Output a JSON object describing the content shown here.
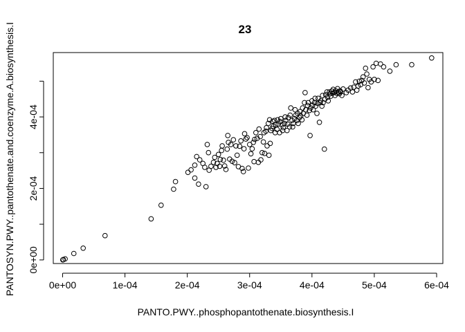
{
  "chart_data": {
    "type": "scatter",
    "title": "23",
    "xlabel": "PANTO.PWY..phosphopantothenate.biosynthesis.I",
    "ylabel": "PANTOSYN.PWY..pantothenate.and.coenzyme.A.biosynthesis.I",
    "xlim": [
      -1.5e-05,
      0.00061
    ],
    "ylim": [
      -1e-05,
      0.00058
    ],
    "x_ticks": [
      0,
      0.0001,
      0.0002,
      0.0003,
      0.0004,
      0.0005,
      0.0006
    ],
    "x_tick_labels": [
      "0e+00",
      "1e-04",
      "2e-04",
      "3e-04",
      "4e-04",
      "5e-04",
      "6e-04"
    ],
    "y_ticks": [
      0,
      0.0001,
      0.0002,
      0.0003,
      0.0004,
      0.0005
    ],
    "y_tick_labels": [
      "0e+00",
      "",
      "2e-04",
      "",
      "4e-04",
      ""
    ],
    "grid": false,
    "marker": "open-circle",
    "color": "#000000",
    "points": [
      [
        3e-07,
        3e-07
      ],
      [
        1e-06,
        1e-06
      ],
      [
        4e-06,
        3e-06
      ],
      [
        1.8e-05,
        1.8e-05
      ],
      [
        3.3e-05,
        3.3e-05
      ],
      [
        6.8e-05,
        6.8e-05
      ],
      [
        0.000142,
        0.000115
      ],
      [
        0.000158,
        0.000153
      ],
      [
        0.000178,
        0.000198
      ],
      [
        0.000181,
        0.000219
      ],
      [
        0.000201,
        0.000245
      ],
      [
        0.000206,
        0.000252
      ],
      [
        0.000212,
        0.000229
      ],
      [
        0.000212,
        0.000265
      ],
      [
        0.000215,
        0.000289
      ],
      [
        0.000218,
        0.000212
      ],
      [
        0.00022,
        0.00028
      ],
      [
        0.000225,
        0.00027
      ],
      [
        0.000228,
        0.000259
      ],
      [
        0.00023,
        0.000205
      ],
      [
        0.000232,
        0.000323
      ],
      [
        0.000234,
        0.0003
      ],
      [
        0.000235,
        0.000251
      ],
      [
        0.000238,
        0.000262
      ],
      [
        0.000242,
        0.000273
      ],
      [
        0.000244,
        0.000287
      ],
      [
        0.000246,
        0.000259
      ],
      [
        0.000248,
        0.00027
      ],
      [
        0.00025,
        0.000295
      ],
      [
        0.000252,
        0.000262
      ],
      [
        0.000253,
        0.000281
      ],
      [
        0.000255,
        0.000306
      ],
      [
        0.000256,
        0.000319
      ],
      [
        0.000258,
        0.000279
      ],
      [
        0.00026,
        0.000263
      ],
      [
        0.000262,
        0.000253
      ],
      [
        0.000264,
        0.00031
      ],
      [
        0.000265,
        0.000348
      ],
      [
        0.000266,
        0.000329
      ],
      [
        0.000268,
        0.000282
      ],
      [
        0.00027,
        0.000323
      ],
      [
        0.000272,
        0.000276
      ],
      [
        0.000274,
        0.000336
      ],
      [
        0.000276,
        0.000272
      ],
      [
        0.000278,
        0.000319
      ],
      [
        0.00028,
        0.000293
      ],
      [
        0.000282,
        0.000261
      ],
      [
        0.000284,
        0.000318
      ],
      [
        0.000286,
        0.000333
      ],
      [
        0.000288,
        0.000256
      ],
      [
        0.00029,
        0.000247
      ],
      [
        0.000291,
        0.000311
      ],
      [
        0.000292,
        0.000353
      ],
      [
        0.000294,
        0.000338
      ],
      [
        0.000296,
        0.000342
      ],
      [
        0.000298,
        0.000257
      ],
      [
        0.0003,
        0.000323
      ],
      [
        0.000302,
        0.000297
      ],
      [
        0.000304,
        0.000311
      ],
      [
        0.000306,
        0.000329
      ],
      [
        0.000307,
        0.000275
      ],
      [
        0.000308,
        0.000337
      ],
      [
        0.00031,
        0.000356
      ],
      [
        0.000312,
        0.00034
      ],
      [
        0.000314,
        0.000273
      ],
      [
        0.000315,
        0.000366
      ],
      [
        0.000317,
        0.000345
      ],
      [
        0.000318,
        0.00028
      ],
      [
        0.00032,
        0.0003
      ],
      [
        0.000322,
        0.00033
      ],
      [
        0.000323,
        0.000356
      ],
      [
        0.000324,
        0.000298
      ],
      [
        0.000326,
        0.00036
      ],
      [
        0.000327,
        0.00037
      ],
      [
        0.000328,
        0.000319
      ],
      [
        0.00033,
        0.000382
      ],
      [
        0.000331,
        0.000293
      ],
      [
        0.000332,
        0.000392
      ],
      [
        0.000333,
        0.000326
      ],
      [
        0.000334,
        0.000362
      ],
      [
        0.000336,
        0.000368
      ],
      [
        0.000337,
        0.000388
      ],
      [
        0.000338,
        0.000374
      ],
      [
        0.00034,
        0.00039
      ],
      [
        0.000341,
        0.000356
      ],
      [
        0.000342,
        0.000378
      ],
      [
        0.000344,
        0.000365
      ],
      [
        0.000345,
        0.000392
      ],
      [
        0.000346,
        0.00038
      ],
      [
        0.000348,
        0.000356
      ],
      [
        0.000349,
        0.000387
      ],
      [
        0.00035,
        0.000395
      ],
      [
        0.000352,
        0.000378
      ],
      [
        0.000353,
        0.000362
      ],
      [
        0.000354,
        0.00037
      ],
      [
        0.000356,
        0.000382
      ],
      [
        0.000357,
        0.0004
      ],
      [
        0.000358,
        0.00039
      ],
      [
        0.00036,
        0.000362
      ],
      [
        0.000361,
        0.00038
      ],
      [
        0.000362,
        0.000398
      ],
      [
        0.000364,
        0.000372
      ],
      [
        0.000365,
        0.000405
      ],
      [
        0.000366,
        0.000425
      ],
      [
        0.000368,
        0.00039
      ],
      [
        0.000369,
        0.000372
      ],
      [
        0.00037,
        0.000382
      ],
      [
        0.000372,
        0.000395
      ],
      [
        0.000373,
        0.00042
      ],
      [
        0.000374,
        0.000405
      ],
      [
        0.000376,
        0.00039
      ],
      [
        0.000377,
        0.00041
      ],
      [
        0.000378,
        0.000382
      ],
      [
        0.00038,
        0.000398
      ],
      [
        0.000381,
        0.000415
      ],
      [
        0.000382,
        0.000403
      ],
      [
        0.000384,
        0.000392
      ],
      [
        0.000385,
        0.000425
      ],
      [
        0.000386,
        0.00041
      ],
      [
        0.000388,
        0.00044
      ],
      [
        0.000389,
        0.000468
      ],
      [
        0.00039,
        0.00042
      ],
      [
        0.000392,
        0.000405
      ],
      [
        0.000393,
        0.000432
      ],
      [
        0.000394,
        0.00044
      ],
      [
        0.000396,
        0.000418
      ],
      [
        0.000397,
        0.000348
      ],
      [
        0.000398,
        0.000425
      ],
      [
        0.0004,
        0.000445
      ],
      [
        0.000401,
        0.000432
      ],
      [
        0.000402,
        0.00042
      ],
      [
        0.000404,
        0.00044
      ],
      [
        0.000405,
        0.000452
      ],
      [
        0.000406,
        0.00043
      ],
      [
        0.000408,
        0.00041
      ],
      [
        0.000409,
        0.000438
      ],
      [
        0.00041,
        0.000452
      ],
      [
        0.000412,
        0.000385
      ],
      [
        0.000413,
        0.00044
      ],
      [
        0.000414,
        0.000445
      ],
      [
        0.000416,
        0.00043
      ],
      [
        0.000417,
        0.00046
      ],
      [
        0.000418,
        0.00044
      ],
      [
        0.00042,
        0.00031
      ],
      [
        0.000421,
        0.00045
      ],
      [
        0.000422,
        0.000462
      ],
      [
        0.000424,
        0.00047
      ],
      [
        0.000425,
        0.000455
      ],
      [
        0.000426,
        0.000445
      ],
      [
        0.000428,
        0.00047
      ],
      [
        0.000429,
        0.000465
      ],
      [
        0.00043,
        0.000458
      ],
      [
        0.000432,
        0.000472
      ],
      [
        0.000433,
        0.000466
      ],
      [
        0.000434,
        0.000477
      ],
      [
        0.000436,
        0.000469
      ],
      [
        0.000437,
        0.00046
      ],
      [
        0.000438,
        0.000473
      ],
      [
        0.00044,
        0.000466
      ],
      [
        0.000441,
        0.000479
      ],
      [
        0.000442,
        0.00047
      ],
      [
        0.000444,
        0.000465
      ],
      [
        0.000445,
        0.000473
      ],
      [
        0.000446,
        0.00047
      ],
      [
        0.000448,
        0.00046
      ],
      [
        0.00045,
        0.000478
      ],
      [
        0.000455,
        0.000468
      ],
      [
        0.000458,
        0.000475
      ],
      [
        0.000462,
        0.000481
      ],
      [
        0.000465,
        0.00047
      ],
      [
        0.000467,
        0.000483
      ],
      [
        0.00047,
        0.000498
      ],
      [
        0.000472,
        0.000475
      ],
      [
        0.000474,
        0.000486
      ],
      [
        0.000476,
        0.0005
      ],
      [
        0.000478,
        0.00049
      ],
      [
        0.00048,
        0.000502
      ],
      [
        0.000482,
        0.000512
      ],
      [
        0.000484,
        0.000495
      ],
      [
        0.000486,
        0.000536
      ],
      [
        0.000488,
        0.00052
      ],
      [
        0.00049,
        0.000482
      ],
      [
        0.000492,
        0.000505
      ],
      [
        0.000495,
        0.000498
      ],
      [
        0.000498,
        0.00054
      ],
      [
        0.0005,
        0.000505
      ],
      [
        0.000503,
        0.00055
      ],
      [
        0.000506,
        0.000502
      ],
      [
        0.00051,
        0.000548
      ],
      [
        0.000515,
        0.00054
      ],
      [
        0.000525,
        0.000528
      ],
      [
        0.000535,
        0.000546
      ],
      [
        0.00056,
        0.000546
      ],
      [
        0.000592,
        0.000565
      ]
    ]
  }
}
